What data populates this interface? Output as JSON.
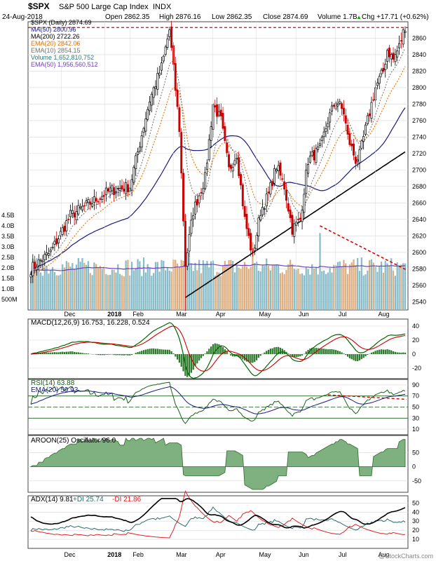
{
  "header": {
    "symbol": "$SPX",
    "name": "S&P 500 Large Cap Index",
    "exchange": "INDX",
    "date": "24-Aug-2018",
    "open": "Open 2862.35",
    "high": "High 2876.16",
    "low": "Low 2862.35",
    "close": "Close 2874.69",
    "volume": "Volume 1.7B",
    "change": "Chg +17.71 (+0.62%)",
    "change_arrow": "▲",
    "watermark": "@StockCharts.com"
  },
  "colors": {
    "up": "#000000",
    "down": "#cc0000",
    "ma50": "#1a1a80",
    "ma200": "#000000",
    "ema20": "#e07000",
    "ema10": "#707070",
    "ema50": "#7040c0",
    "vol_up": "#88bcc8",
    "vol_down": "#dcae80",
    "trend": "#dd0000",
    "macd": "#006600",
    "signal": "#cc0000",
    "hist": "#2c7a2c",
    "rsi": "#1a5e1a",
    "rsi_ema": "#1a1a80",
    "aroon_fill": "#7fb07f",
    "adx": "#000000",
    "pdi": "#2b6d6d",
    "mdi": "#dd2222",
    "grid": "#d8d8d8"
  },
  "x_axis": [
    "Dec",
    "2018",
    "Feb",
    "Mar",
    "Apr",
    "May",
    "Jun",
    "Jul",
    "Aug"
  ],
  "price_panel": {
    "legend": [
      {
        "text": "$SPX (Daily) 2874.69",
        "color": "#000000"
      },
      {
        "text": "MA(50) 2800.96",
        "color": "#1a1a80"
      },
      {
        "text": "MA(200) 2722.26",
        "color": "#000000"
      },
      {
        "text": "EMA(20) 2842.06",
        "color": "#e07000"
      },
      {
        "text": "EMA(10) 2854.15",
        "color": "#707070"
      },
      {
        "text": "Volume 1,652,810,752",
        "color": "#2a7a7a"
      },
      {
        "text": "EMA(50) 1,956,560,512",
        "color": "#7040c0"
      }
    ],
    "y_ticks": [
      "2860",
      "2840",
      "2820",
      "2800",
      "2780",
      "2760",
      "2740",
      "2720",
      "2700",
      "2680",
      "2660",
      "2640",
      "2620",
      "2600",
      "2580",
      "2560",
      "2540"
    ],
    "vol_ticks": [
      "4.5B",
      "4.0B",
      "3.5B",
      "3.0B",
      "2.5B",
      "2.0B",
      "1.5B",
      "1.0B",
      "500M"
    ]
  },
  "macd_panel": {
    "legend": "MACD(12,26,9) 16.753, 16.228, 0.524",
    "y_ticks": [
      "40",
      "20",
      "0",
      "-20"
    ]
  },
  "rsi_panel": {
    "legend1": "RSI(14) 63.88",
    "legend2": "EMA(20) 59.93",
    "y_ticks": [
      "90",
      "70",
      "50",
      "30",
      "10"
    ]
  },
  "aroon_panel": {
    "legend": "AROON(25) Oscillator 96.0",
    "y_ticks": [
      "50",
      "0",
      "-50"
    ]
  },
  "adx_panel": {
    "legend1": "ADX(14) 9.81",
    "legend2": "+DI 25.74",
    "legend3": "-DI 21.86",
    "y_ticks": [
      "50",
      "40",
      "30",
      "20",
      "10"
    ]
  },
  "chart_data": {
    "type": "line",
    "title": "$SPX S&P 500 Large Cap Index INDX",
    "series": [
      {
        "name": "$SPX (Daily)",
        "x": [
          "2017-11-17",
          "2017-11-30",
          "2017-12-15",
          "2017-12-29",
          "2018-01-12",
          "2018-01-26",
          "2018-02-08",
          "2018-02-26",
          "2018-03-09",
          "2018-03-23",
          "2018-04-02",
          "2018-04-18",
          "2018-05-03",
          "2018-05-18",
          "2018-06-12",
          "2018-06-29",
          "2018-07-13",
          "2018-07-25",
          "2018-08-10",
          "2018-08-24"
        ],
        "y": [
          2580,
          2645,
          2675,
          2680,
          2785,
          2870,
          2585,
          2780,
          2785,
          2590,
          2585,
          2705,
          2628,
          2712,
          2785,
          2718,
          2800,
          2846,
          2834,
          2875
        ]
      },
      {
        "name": "MA(50)",
        "x": [
          "2017-11-17",
          "2017-12-29",
          "2018-01-26",
          "2018-02-26",
          "2018-03-23",
          "2018-04-18",
          "2018-05-18",
          "2018-06-12",
          "2018-06-29",
          "2018-07-25",
          "2018-08-24"
        ],
        "y": [
          2560,
          2615,
          2720,
          2745,
          2730,
          2695,
          2690,
          2690,
          2705,
          2760,
          2801
        ]
      },
      {
        "name": "MA(200)",
        "x": [
          "2018-02-08",
          "2018-03-09",
          "2018-04-02",
          "2018-05-03",
          "2018-06-12",
          "2018-07-13",
          "2018-08-24"
        ],
        "y": [
          2545,
          2568,
          2590,
          2610,
          2650,
          2685,
          2722
        ]
      }
    ],
    "ylim": [
      2530,
      2880
    ]
  }
}
